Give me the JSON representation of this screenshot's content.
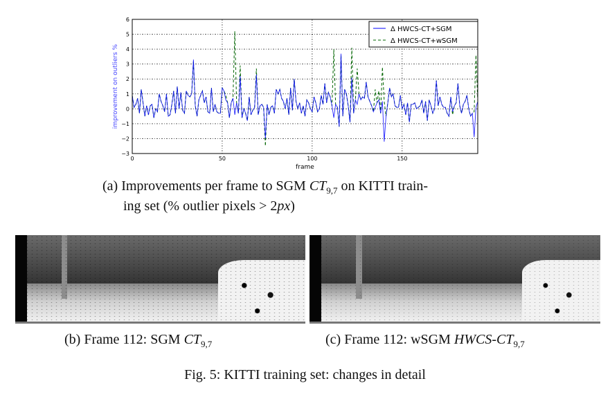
{
  "chart_data": {
    "type": "line",
    "title": "",
    "xlabel": "frame",
    "ylabel": "improvement on outliers %",
    "xlim": [
      0,
      192
    ],
    "ylim": [
      -3,
      6
    ],
    "xticks": [
      0,
      50,
      100,
      150
    ],
    "yticks": [
      -3,
      -2,
      -1,
      0,
      1,
      2,
      3,
      4,
      5,
      6
    ],
    "grid": true,
    "legend_position": "top-right",
    "colors": {
      "sgm": "#0000ff",
      "wsgm": "#006400",
      "ylabel": "#4444ff"
    },
    "series": [
      {
        "name": "Δ HWCS-CT+SGM",
        "style": "solid",
        "values": [
          0.9,
          0.1,
          0.3,
          0.7,
          -0.3,
          1.3,
          0.4,
          -0.5,
          0.2,
          -0.4,
          0.2,
          0.3,
          -0.6,
          0.0,
          -0.2,
          1.0,
          0.5,
          0.2,
          -0.2,
          1.0,
          -0.5,
          -0.4,
          0.3,
          1.2,
          -0.3,
          1.5,
          0.0,
          1.1,
          -0.1,
          -0.3,
          1.2,
          0.9,
          0.8,
          1.0,
          3.3,
          0.2,
          -0.5,
          0.6,
          0.9,
          1.2,
          0.4,
          0.8,
          -0.2,
          -0.3,
          1.4,
          -0.2,
          0.3,
          -0.2,
          -0.3,
          -0.3,
          1.4,
          1.2,
          0.6,
          0.4,
          -0.6,
          0.4,
          0.7,
          -0.4,
          0.4,
          -0.3,
          2.2,
          -0.6,
          0.0,
          -0.3,
          -0.8,
          0.8,
          -0.4,
          -0.1,
          0.1,
          2.3,
          -0.4,
          0.2,
          0.3,
          0.1,
          -2.0,
          0.3,
          -0.4,
          0.1,
          0.2,
          -0.3,
          1.3,
          1.0,
          1.3,
          0.7,
          0.5,
          0.0,
          0.7,
          -0.4,
          1.4,
          -0.1,
          2.0,
          0.5,
          0.0,
          0.4,
          -0.3,
          0.2,
          -0.5,
          0.6,
          0.4,
          0.0,
          -0.2,
          0.8,
          0.4,
          -0.2,
          0.0,
          0.9,
          0.3,
          1.7,
          0.4,
          1.1,
          0.8,
          0.2,
          -0.6,
          0.3,
          0.1,
          -1.2,
          3.7,
          -0.5,
          1.3,
          1.0,
          0.2,
          -0.9,
          2.1,
          -0.3,
          0.6,
          0.3,
          1.0,
          0.6,
          0.8,
          0.7,
          1.8,
          0.8,
          0.5,
          0.2,
          -0.2,
          0.1,
          0.4,
          0.6,
          -0.3,
          0.5,
          -2.2,
          -0.5,
          0.4,
          1.4,
          0.8,
          1.0,
          0.2,
          0.1,
          0.1,
          0.9,
          0.0,
          0.3,
          -0.4,
          0.4,
          -0.9,
          0.3,
          0.3,
          0.4,
          0.0,
          0.1,
          0.2,
          0.6,
          -0.3,
          0.5,
          -0.8,
          0.6,
          0.2,
          -0.3,
          0.0,
          1.9,
          0.2,
          0.8,
          0.3,
          0.1,
          0.1,
          -0.3,
          -0.5,
          0.8,
          -0.2,
          0.2,
          0.4,
          1.7,
          0.2,
          -0.3,
          0.3,
          0.5,
          0.9,
          0.0,
          -0.5,
          -0.3,
          -1.9,
          0.1,
          0.5
        ]
      },
      {
        "name": "Δ HWCS-CT+wSGM",
        "style": "dashed",
        "values": [
          0.9,
          0.1,
          0.3,
          0.7,
          -0.3,
          1.3,
          0.4,
          -0.5,
          0.2,
          -0.4,
          0.2,
          0.3,
          -0.6,
          0.0,
          -0.2,
          1.0,
          0.5,
          0.2,
          -0.2,
          1.0,
          -0.5,
          -0.4,
          0.3,
          1.2,
          -0.3,
          1.5,
          0.0,
          1.1,
          -0.1,
          -0.3,
          1.2,
          0.9,
          0.8,
          1.0,
          3.2,
          0.2,
          -0.5,
          0.6,
          0.9,
          1.2,
          0.4,
          0.8,
          -0.2,
          -0.3,
          1.4,
          -0.2,
          0.3,
          -0.2,
          -0.3,
          -0.3,
          1.4,
          1.2,
          0.9,
          0.4,
          -0.6,
          0.4,
          0.7,
          5.2,
          0.4,
          -0.3,
          2.9,
          -0.6,
          0.0,
          -0.3,
          -0.8,
          0.8,
          -0.4,
          -0.1,
          0.1,
          2.7,
          -0.4,
          0.2,
          0.3,
          0.1,
          -2.5,
          0.3,
          -0.4,
          0.1,
          0.2,
          -0.3,
          1.3,
          1.0,
          1.3,
          0.7,
          0.5,
          0.0,
          0.7,
          -0.4,
          1.4,
          -0.1,
          2.0,
          0.5,
          0.0,
          0.4,
          -0.3,
          0.2,
          -0.5,
          0.6,
          0.4,
          0.0,
          -0.2,
          0.8,
          0.4,
          -0.2,
          0.0,
          0.9,
          0.3,
          1.7,
          0.4,
          1.1,
          0.8,
          0.2,
          4.0,
          0.3,
          0.1,
          -1.2,
          3.6,
          -0.5,
          1.3,
          1.0,
          0.2,
          -0.9,
          4.1,
          -0.3,
          0.6,
          2.7,
          1.0,
          0.6,
          0.8,
          0.7,
          1.8,
          0.8,
          0.5,
          0.2,
          -0.2,
          1.3,
          0.4,
          1.2,
          -0.3,
          2.8,
          0.5,
          -0.5,
          0.4,
          1.4,
          0.8,
          1.0,
          0.2,
          0.1,
          0.1,
          0.9,
          0.0,
          0.3,
          -0.4,
          0.4,
          -0.9,
          0.3,
          0.3,
          0.4,
          0.0,
          0.1,
          0.2,
          0.6,
          -0.3,
          0.5,
          -0.8,
          0.6,
          0.2,
          -0.3,
          0.0,
          1.9,
          0.2,
          0.8,
          0.3,
          0.1,
          0.1,
          -0.3,
          -0.5,
          0.8,
          -0.4,
          0.2,
          0.4,
          1.7,
          0.2,
          -0.3,
          0.3,
          0.5,
          0.9,
          0.0,
          -0.5,
          -0.3,
          -0.2,
          3.6,
          0.5
        ]
      }
    ]
  },
  "captions": {
    "a_prefix": "(a) Improvements per frame to SGM ",
    "a_ct": "CT",
    "a_sub": "9,7",
    "a_suffix": " on KITTI train-",
    "a_line2_prefix": "ing set (% outlier pixels > 2",
    "a_line2_px": "px",
    "a_line2_suffix": ")",
    "b_prefix": "(b) Frame 112: SGM ",
    "b_ct": "CT",
    "b_sub": "9,7",
    "c_prefix": "(c) Frame 112: wSGM ",
    "c_ct": "HWCS-CT",
    "c_sub": "9,7",
    "figure": "Fig. 5: KITTI training set: changes in detail"
  }
}
